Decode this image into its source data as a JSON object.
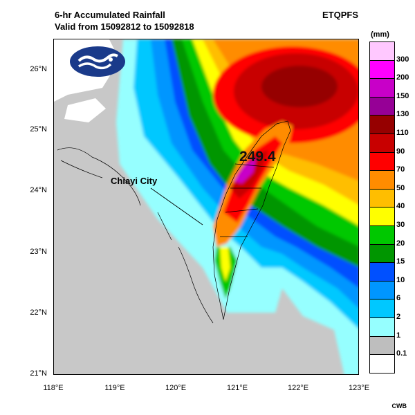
{
  "header": {
    "title": "6-hr Accumulated Rainfall",
    "valid": "Valid from 15092812 to 15092818",
    "model": "ETQPFS"
  },
  "axes": {
    "lat_labels": [
      "26°N",
      "25°N",
      "24°N",
      "23°N",
      "22°N",
      "21°N"
    ],
    "lon_labels": [
      "118°E",
      "119°E",
      "120°E",
      "121°E",
      "122°E",
      "123°E"
    ]
  },
  "annotations": {
    "peak_value": "249.4",
    "city": "Chiayi City"
  },
  "legend": {
    "unit": "(mm)",
    "levels": [
      "300",
      "200",
      "150",
      "130",
      "110",
      "90",
      "70",
      "50",
      "40",
      "30",
      "20",
      "15",
      "10",
      "6",
      "2",
      "1",
      "0.1"
    ],
    "colors": [
      "#ffc8ff",
      "#ff00ff",
      "#c800c8",
      "#960096",
      "#960000",
      "#c80000",
      "#ff0000",
      "#ff8c00",
      "#ffbe00",
      "#ffff00",
      "#00c800",
      "#009600",
      "#0050ff",
      "#0096ff",
      "#00c8ff",
      "#96ffff",
      "#bebebe",
      "#ffffff"
    ]
  },
  "credit": "CWB"
}
